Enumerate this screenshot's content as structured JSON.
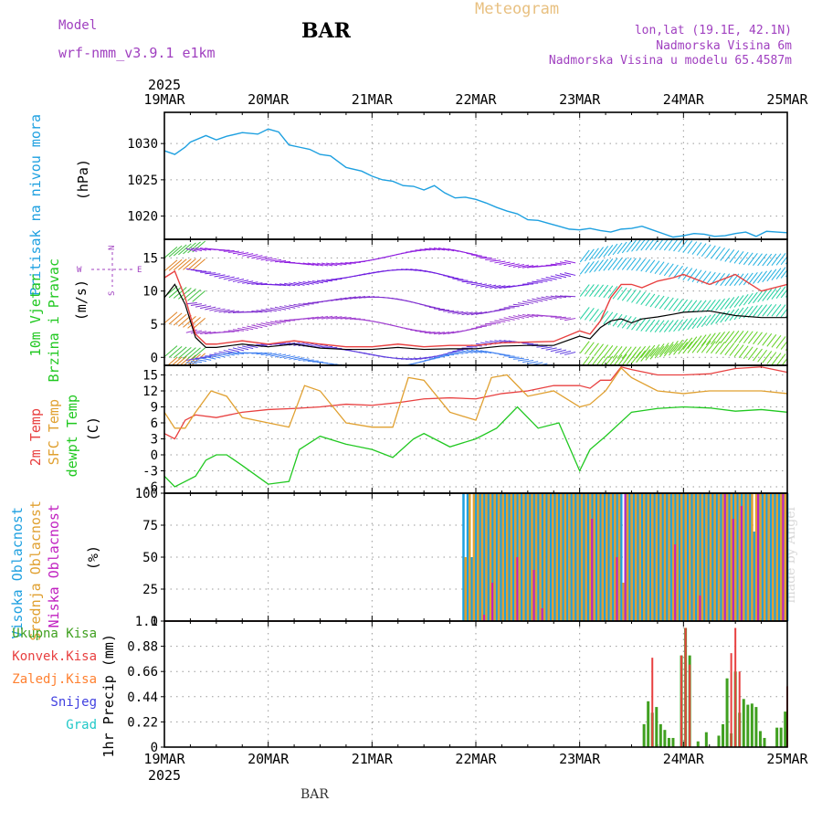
{
  "header": {
    "model_label": "Model",
    "model_version": "wrf-nmm_v3.9.1  e1km",
    "station": "BAR",
    "title": "Meteogram",
    "lonlat": "lon,lat (19.1E, 42.1N)",
    "elevation": "Nadmorska Visina 6m",
    "model_elevation": "Nadmorska Visina u modelu 65.4587m",
    "footer_station": "BAR",
    "credit": "made by Angel"
  },
  "time_axis": {
    "year": "2025",
    "ticks": [
      "19MAR",
      "20MAR",
      "21MAR",
      "22MAR",
      "23MAR",
      "24MAR",
      "25MAR"
    ]
  },
  "colors": {
    "pressure": "#1ea0e0",
    "temp2m": "#e84040",
    "sfc_temp": "#e0a030",
    "dewpoint": "#20c820",
    "high_cloud": "#1ea0e0",
    "mid_cloud": "#e0a030",
    "low_cloud": "#c020c0",
    "total_precip": "#40a020",
    "conv_precip": "#e84040",
    "snow": "#4040e0",
    "grad": "#20c8c8"
  },
  "panels": {
    "pressure": {
      "label": "Pritisak na nivou mora",
      "unit": "(hPa)"
    },
    "wind": {
      "label1": "10m Vjetar",
      "label2": "Brzina i Pravac",
      "unit": "(m/s)",
      "compass_n": "N",
      "compass_s": "S",
      "compass_w": "W",
      "compass_e": "E"
    },
    "temp": {
      "label1": "2m Temp",
      "label2": "SFC Temp",
      "label3": "dewpt Temp",
      "unit": "(C)"
    },
    "cloud": {
      "label1": "Visoka Oblacnost",
      "label2": "Srednja Oblacnost",
      "label3": "Niska Oblacnost",
      "unit": "(%)"
    },
    "precip": {
      "axis_label": "1hr Precip (mm)",
      "legend": [
        "Ukupna Kisa",
        "Konvek.Kisa",
        "Zaledj.Kisa",
        "Snijeg",
        "Grad"
      ]
    }
  },
  "chart_data": [
    {
      "type": "line",
      "name": "pressure",
      "ylabel": "(hPa)",
      "yticks": [
        1020,
        1025,
        1030
      ],
      "ylim": [
        1016.8,
        1034.3
      ],
      "grid": true,
      "x": [
        0,
        0.1,
        0.2,
        0.25,
        0.4,
        0.5,
        0.6,
        0.75,
        0.9,
        1.0,
        1.1,
        1.2,
        1.3,
        1.4,
        1.5,
        1.6,
        1.75,
        1.9,
        2.0,
        2.1,
        2.2,
        2.3,
        2.4,
        2.5,
        2.6,
        2.7,
        2.8,
        2.9,
        3.0,
        3.1,
        3.2,
        3.3,
        3.4,
        3.5,
        3.6,
        3.7,
        3.8,
        3.9,
        4.0,
        4.1,
        4.2,
        4.3,
        4.4,
        4.5,
        4.6,
        4.7,
        4.8,
        4.9,
        5.0,
        5.1,
        5.2,
        5.3,
        5.4,
        5.5,
        5.6,
        5.7,
        5.8,
        5.9,
        6.0
      ],
      "y": [
        1029,
        1028.5,
        1029.5,
        1030.2,
        1031.1,
        1030.5,
        1031.0,
        1031.5,
        1031.3,
        1032.0,
        1031.6,
        1029.8,
        1029.5,
        1029.2,
        1028.5,
        1028.3,
        1026.7,
        1026.2,
        1025.5,
        1025.0,
        1024.8,
        1024.2,
        1024.1,
        1023.6,
        1024.2,
        1023.2,
        1022.5,
        1022.6,
        1022.3,
        1021.8,
        1021.2,
        1020.7,
        1020.3,
        1019.5,
        1019.4,
        1019.0,
        1018.6,
        1018.2,
        1018.1,
        1018.3,
        1018.0,
        1017.8,
        1018.2,
        1018.3,
        1018.6,
        1018.1,
        1017.6,
        1017.1,
        1017.3,
        1017.6,
        1017.5,
        1017.2,
        1017.3,
        1017.6,
        1017.8,
        1017.2,
        1017.9,
        1017.8,
        1017.7
      ]
    },
    {
      "type": "line",
      "name": "wind",
      "ylabel": "(m/s)",
      "yticks": [
        0,
        5,
        10,
        15
      ],
      "ylim": [
        -1.2,
        17.8
      ],
      "grid": true,
      "series": [
        {
          "color": "#000000",
          "x": [
            0,
            0.1,
            0.2,
            0.3,
            0.4,
            0.5,
            0.75,
            1.0,
            1.25,
            1.5,
            1.75,
            2.0,
            2.25,
            2.5,
            2.75,
            3.0,
            3.25,
            3.5,
            3.75,
            4.0,
            4.1,
            4.2,
            4.3,
            4.4,
            4.5,
            4.6,
            4.75,
            4.9,
            5.0,
            5.25,
            5.5,
            5.75,
            6.0
          ],
          "y": [
            9,
            11,
            8,
            3,
            1.5,
            1.5,
            2,
            1.6,
            2,
            1.4,
            1.2,
            1.2,
            1.5,
            1.2,
            1.3,
            1.3,
            1.7,
            1.8,
            1.8,
            3.2,
            2.8,
            4.5,
            5.5,
            5.8,
            5.2,
            5.8,
            6.1,
            6.5,
            6.8,
            7,
            6.3,
            6.0,
            6.0
          ]
        },
        {
          "color": "#e84040",
          "x": [
            0,
            0.1,
            0.2,
            0.3,
            0.4,
            0.5,
            0.75,
            1.0,
            1.25,
            1.5,
            1.75,
            2.0,
            2.25,
            2.5,
            2.75,
            3.0,
            3.25,
            3.5,
            3.75,
            4.0,
            4.1,
            4.2,
            4.3,
            4.4,
            4.5,
            4.6,
            4.75,
            4.9,
            5.0,
            5.25,
            5.5,
            5.75,
            6.0
          ],
          "y": [
            12,
            13,
            9,
            3.5,
            2,
            2,
            2.5,
            2,
            2.5,
            2,
            1.6,
            1.6,
            2,
            1.6,
            1.8,
            1.8,
            2.2,
            2.3,
            2.4,
            4,
            3.5,
            5.5,
            9,
            11,
            11,
            10.5,
            11.5,
            12,
            12.5,
            11,
            12.5,
            10,
            11
          ]
        }
      ]
    },
    {
      "type": "line",
      "name": "temperature",
      "ylabel": "(C)",
      "yticks": [
        -6,
        -3,
        0,
        3,
        6,
        9,
        12,
        15
      ],
      "ylim": [
        -7.2,
        16.8
      ],
      "grid": true,
      "series": [
        {
          "key": "temp2m",
          "x": [
            0,
            0.1,
            0.2,
            0.3,
            0.5,
            0.75,
            1.0,
            1.25,
            1.5,
            1.75,
            2.0,
            2.25,
            2.5,
            2.75,
            3.0,
            3.25,
            3.5,
            3.75,
            4.0,
            4.1,
            4.2,
            4.3,
            4.4,
            4.5,
            4.75,
            5.0,
            5.25,
            5.5,
            5.75,
            6.0
          ],
          "y": [
            4,
            3,
            6.5,
            7.5,
            7,
            8,
            8.5,
            8.7,
            9,
            9.5,
            9.3,
            9.8,
            10.5,
            10.7,
            10.5,
            11.5,
            12,
            13,
            13,
            12.5,
            14,
            14,
            16.5,
            16,
            15,
            15,
            15.2,
            16.2,
            16.5,
            15.5
          ]
        },
        {
          "key": "sfc_temp",
          "x": [
            0,
            0.1,
            0.2,
            0.3,
            0.45,
            0.6,
            0.75,
            1.0,
            1.2,
            1.35,
            1.5,
            1.75,
            2.0,
            2.2,
            2.35,
            2.5,
            2.75,
            3.0,
            3.15,
            3.3,
            3.5,
            3.75,
            4.0,
            4.1,
            4.25,
            4.4,
            4.5,
            4.75,
            5.0,
            5.25,
            5.5,
            5.75,
            6.0
          ],
          "y": [
            8,
            5,
            5,
            8,
            12,
            11,
            7,
            6,
            5.2,
            13,
            12,
            6,
            5.2,
            5.2,
            14.5,
            14,
            8,
            6.5,
            14.5,
            15,
            11,
            12,
            9,
            9.5,
            12,
            16.3,
            14.5,
            12,
            11.5,
            12,
            12,
            12,
            11.5
          ]
        },
        {
          "key": "dewpoint",
          "x": [
            0,
            0.1,
            0.2,
            0.3,
            0.4,
            0.5,
            0.6,
            0.75,
            1.0,
            1.2,
            1.3,
            1.5,
            1.75,
            2.0,
            2.2,
            2.4,
            2.5,
            2.75,
            3.0,
            3.2,
            3.4,
            3.6,
            3.8,
            4.0,
            4.1,
            4.25,
            4.5,
            4.75,
            5.0,
            5.25,
            5.5,
            5.75,
            6.0
          ],
          "y": [
            -4,
            -6,
            -5,
            -4,
            -1,
            0,
            0,
            -2,
            -5.5,
            -5,
            1,
            3.5,
            2,
            1,
            -0.5,
            3,
            4,
            1.5,
            3,
            5,
            9,
            5,
            6,
            -3,
            1,
            3.5,
            8,
            8.7,
            9,
            8.8,
            8.2,
            8.5,
            8.0
          ]
        }
      ]
    },
    {
      "type": "bar",
      "name": "cloud_cover",
      "ylabel": "(%)",
      "yticks": [
        0,
        25,
        50,
        75,
        100
      ],
      "ylim": [
        0,
        100
      ],
      "grid": true,
      "series": [
        {
          "key": "high_cloud",
          "x_start": 2.87,
          "x_end": 6.0,
          "step": 0.04,
          "values": [
            100,
            100,
            50,
            100,
            100,
            100,
            100,
            100,
            100,
            100,
            100,
            100,
            100,
            100,
            100,
            100,
            100,
            100,
            100,
            100,
            100,
            100,
            100,
            100,
            100,
            100,
            100,
            100,
            100,
            100,
            100,
            100,
            100,
            100,
            100,
            100,
            100,
            100,
            100,
            100,
            100,
            100,
            100,
            100,
            100,
            100,
            100,
            100,
            100,
            100,
            100,
            100,
            100,
            100,
            100,
            100,
            100,
            100,
            100,
            100,
            100,
            100,
            100,
            100,
            100,
            100,
            100,
            100,
            100,
            100,
            70,
            100,
            100,
            100,
            100,
            100,
            100,
            100,
            100
          ]
        },
        {
          "key": "mid_cloud",
          "x_start": 2.89,
          "x_end": 6.0,
          "step": 0.04,
          "values": [
            50,
            100,
            100,
            100,
            100,
            100,
            100,
            100,
            100,
            100,
            100,
            100,
            100,
            100,
            100,
            100,
            100,
            100,
            100,
            100,
            100,
            100,
            100,
            100,
            100,
            100,
            100,
            100,
            100,
            100,
            100,
            100,
            100,
            100,
            100,
            100,
            100,
            100,
            30,
            100,
            100,
            100,
            100,
            100,
            100,
            100,
            100,
            100,
            100,
            100,
            100,
            100,
            100,
            100,
            100,
            100,
            100,
            100,
            100,
            100,
            100,
            100,
            100,
            100,
            100,
            100,
            100,
            100,
            100,
            100,
            100,
            100,
            100,
            100,
            100,
            100,
            100,
            100
          ]
        },
        {
          "key": "low_cloud",
          "x_start": 2.91,
          "x_end": 6.0,
          "step": 0.08,
          "values": [
            0,
            0,
            5,
            30,
            0,
            0,
            50,
            0,
            40,
            10,
            0,
            0,
            0,
            0,
            0,
            80,
            0,
            0,
            50,
            100,
            0,
            0,
            0,
            0,
            0,
            60,
            0,
            0,
            20,
            0,
            0,
            100,
            80,
            90,
            0,
            100,
            0,
            0,
            100
          ]
        }
      ]
    },
    {
      "type": "bar",
      "name": "precipitation",
      "ylabel": "1hr Precip (mm)",
      "yticks": [
        0,
        0.22,
        0.44,
        0.66,
        0.88,
        1.1
      ],
      "ylim": [
        0,
        1.1
      ],
      "grid": true,
      "series": [
        {
          "key": "total_precip",
          "x": [
            4.62,
            4.66,
            4.7,
            4.74,
            4.78,
            4.82,
            4.86,
            4.9,
            4.94,
            4.98,
            5.02,
            5.06,
            5.1,
            5.14,
            5.18,
            5.22,
            5.26,
            5.3,
            5.34,
            5.38,
            5.42,
            5.46,
            5.5,
            5.54,
            5.58,
            5.62,
            5.66,
            5.7,
            5.74,
            5.78,
            5.82,
            5.86,
            5.9,
            5.94,
            5.98
          ],
          "values": [
            0.2,
            0.4,
            0.3,
            0.35,
            0.2,
            0.15,
            0.08,
            0.08,
            0,
            0.8,
            1.04,
            0.8,
            0,
            0.05,
            0,
            0.13,
            0,
            0,
            0.1,
            0.2,
            0.6,
            0.12,
            0.66,
            0.3,
            0.42,
            0.37,
            0.38,
            0.35,
            0.14,
            0.08,
            0,
            0,
            0.17,
            0.17,
            0.31
          ]
        },
        {
          "key": "conv_precip",
          "x": [
            4.7,
            4.98,
            5.02,
            5.06,
            5.46,
            5.5,
            5.54,
            6.0
          ],
          "values": [
            0.78,
            0.8,
            1.04,
            0.72,
            0.82,
            1.04,
            0.66,
            0.53
          ]
        }
      ]
    }
  ]
}
